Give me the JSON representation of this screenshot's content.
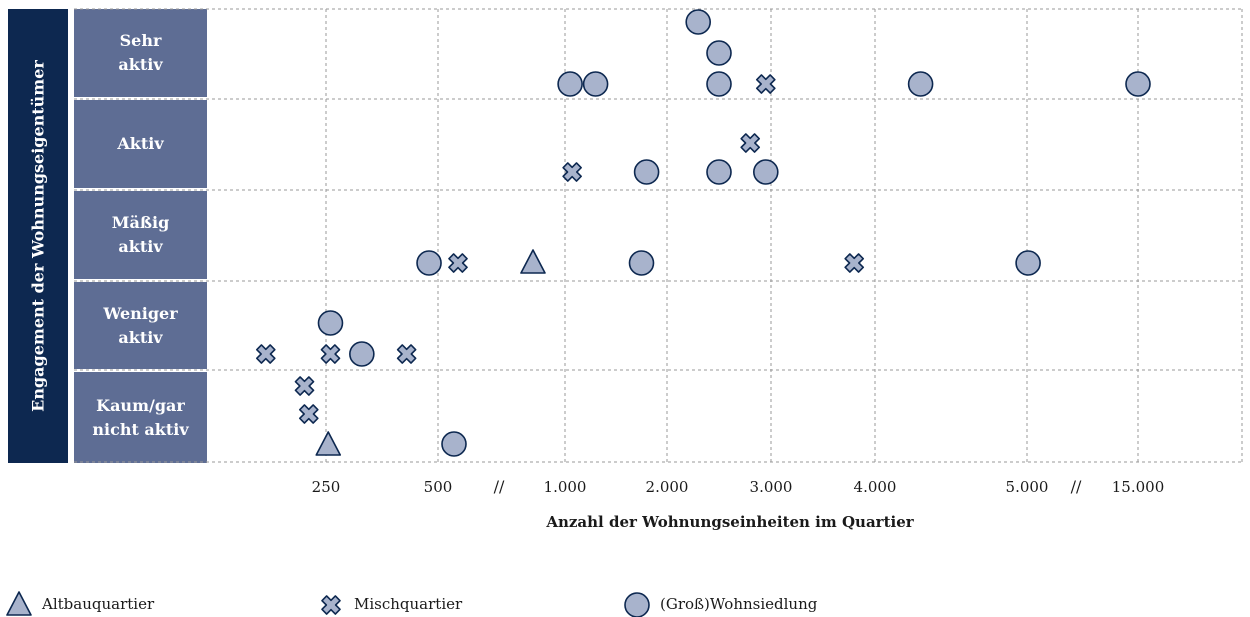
{
  "chart_data": {
    "type": "scatter",
    "ylabel": "Engagement der Wohnungseigentümer",
    "xlabel": "Anzahl der Wohnungseinheiten im Quartier",
    "y_categories": [
      "Sehr\naktiv",
      "Aktiv",
      "Mäßig\naktiv",
      "Weniger\naktiv",
      "Kaum/gar\nnicht aktiv"
    ],
    "x_ticks": [
      "250",
      "500",
      "1.000",
      "2.000",
      "3.000",
      "4.000",
      "5.000",
      "15.000"
    ],
    "x_breaks": [
      "//",
      "//"
    ],
    "grid": true,
    "legend_position": "bottom",
    "colors": {
      "fill": "#a8b3cc",
      "stroke": "#0d2850",
      "category_bg": "#5e6d94",
      "ylabel_bg": "#0d2850"
    },
    "series": [
      {
        "name": "Altbauquartier",
        "marker": "triangle",
        "points": [
          {
            "x": "800",
            "y": "Mäßig\naktiv"
          },
          {
            "x": "255",
            "y": "Kaum/gar\nnicht aktiv"
          }
        ]
      },
      {
        "name": "Mischquartier",
        "marker": "cross",
        "points": [
          {
            "x": "2.950",
            "y": "Sehr\naktiv"
          },
          {
            "x": "2.800",
            "y": "Aktiv"
          },
          {
            "x": "1.070",
            "y": "Aktiv"
          },
          {
            "x": "600",
            "y": "Mäßig\naktiv"
          },
          {
            "x": "3.800",
            "y": "Mäßig\naktiv"
          },
          {
            "x": "180",
            "y": "Weniger\naktiv"
          },
          {
            "x": "260",
            "y": "Weniger\naktiv"
          },
          {
            "x": "430",
            "y": "Weniger\naktiv"
          },
          {
            "x": "225",
            "y": "Kaum/gar\nnicht aktiv"
          },
          {
            "x": "230",
            "y": "Kaum/gar\nnicht aktiv"
          }
        ]
      },
      {
        "name": "(Groß)Wohnsiedlung",
        "marker": "circle",
        "points": [
          {
            "x": "2.300",
            "y": "Sehr\naktiv"
          },
          {
            "x": "2.500",
            "y": "Sehr\naktiv"
          },
          {
            "x": "1.050",
            "y": "Sehr\naktiv"
          },
          {
            "x": "1.300",
            "y": "Sehr\naktiv"
          },
          {
            "x": "2.500",
            "y": "Sehr\naktiv"
          },
          {
            "x": "4.300",
            "y": "Sehr\naktiv"
          },
          {
            "x": "15.000",
            "y": "Sehr\naktiv"
          },
          {
            "x": "1.800",
            "y": "Aktiv"
          },
          {
            "x": "2.500",
            "y": "Aktiv"
          },
          {
            "x": "2.950",
            "y": "Aktiv"
          },
          {
            "x": "480",
            "y": "Mäßig\naktiv"
          },
          {
            "x": "1.750",
            "y": "Mäßig\naktiv"
          },
          {
            "x": "5.100",
            "y": "Mäßig\naktiv"
          },
          {
            "x": "260",
            "y": "Weniger\naktiv"
          },
          {
            "x": "330",
            "y": "Weniger\naktiv"
          },
          {
            "x": "580",
            "y": "Kaum/gar\nnicht aktiv"
          }
        ]
      }
    ]
  }
}
